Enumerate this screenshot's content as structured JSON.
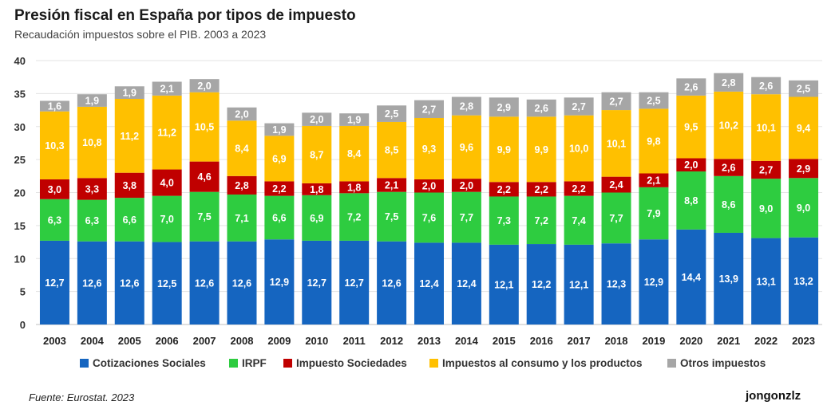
{
  "header": {
    "title": "Presión fiscal en España por tipos de impuesto",
    "subtitle": "Recaudación impuestos sobre el PIB. 2003 a 2023"
  },
  "footer": {
    "source": "Fuente: Eurostat. 2023",
    "author": "jongonzlz"
  },
  "chart_data": {
    "type": "bar",
    "stacked": true,
    "title": "Presión fiscal en España por tipos de impuesto",
    "subtitle": "Recaudación impuestos sobre el PIB. 2003 a 2023",
    "xlabel": "",
    "ylabel": "",
    "ylim": [
      0,
      40
    ],
    "yticks": [
      "0",
      "5",
      "10",
      "15",
      "20",
      "25",
      "30",
      "35",
      "40"
    ],
    "grid": true,
    "legend_position": "bottom",
    "categories": [
      "2003",
      "2004",
      "2005",
      "2006",
      "2007",
      "2008",
      "2009",
      "2010",
      "2011",
      "2012",
      "2013",
      "2014",
      "2015",
      "2016",
      "2017",
      "2018",
      "2019",
      "2020",
      "2021",
      "2022",
      "2023"
    ],
    "series": [
      {
        "name": "Cotizaciones Sociales",
        "color": "#1565c0",
        "values": [
          12.7,
          12.6,
          12.6,
          12.5,
          12.6,
          12.6,
          12.9,
          12.7,
          12.7,
          12.6,
          12.4,
          12.4,
          12.1,
          12.2,
          12.1,
          12.3,
          12.9,
          14.4,
          13.9,
          13.1,
          13.2
        ],
        "labels": [
          "12,7",
          "12,6",
          "12,6",
          "12,5",
          "12,6",
          "12,6",
          "12,9",
          "12,7",
          "12,7",
          "12,6",
          "12,4",
          "12,4",
          "12,1",
          "12,2",
          "12,1",
          "12,3",
          "12,9",
          "14,4",
          "13,9",
          "13,1",
          "13,2"
        ]
      },
      {
        "name": "IRPF",
        "color": "#2ecc40",
        "values": [
          6.3,
          6.3,
          6.6,
          7.0,
          7.5,
          7.1,
          6.6,
          6.9,
          7.2,
          7.5,
          7.6,
          7.7,
          7.3,
          7.2,
          7.4,
          7.7,
          7.9,
          8.8,
          8.6,
          9.0,
          9.0
        ],
        "labels": [
          "6,3",
          "6,3",
          "6,6",
          "7,0",
          "7,5",
          "7,1",
          "6,6",
          "6,9",
          "7,2",
          "7,5",
          "7,6",
          "7,7",
          "7,3",
          "7,2",
          "7,4",
          "7,7",
          "7,9",
          "8,8",
          "8,6",
          "9,0",
          "9,0"
        ]
      },
      {
        "name": "Impuesto Sociedades",
        "color": "#c00000",
        "values": [
          3.0,
          3.3,
          3.8,
          4.0,
          4.6,
          2.8,
          2.2,
          1.8,
          1.8,
          2.1,
          2.0,
          2.0,
          2.2,
          2.2,
          2.2,
          2.4,
          2.1,
          2.0,
          2.6,
          2.7,
          2.9
        ],
        "labels": [
          "3,0",
          "3,3",
          "3,8",
          "4,0",
          "4,6",
          "2,8",
          "2,2",
          "1,8",
          "1,8",
          "2,1",
          "2,0",
          "2,0",
          "2,2",
          "2,2",
          "2,2",
          "2,4",
          "2,1",
          "2,0",
          "2,6",
          "2,7",
          "2,9"
        ]
      },
      {
        "name": "Impuestos al consumo y los productos",
        "color": "#ffc000",
        "values": [
          10.3,
          10.8,
          11.2,
          11.2,
          10.5,
          8.4,
          6.9,
          8.7,
          8.4,
          8.5,
          9.3,
          9.6,
          9.9,
          9.9,
          10.0,
          10.1,
          9.8,
          9.5,
          10.2,
          10.1,
          9.4
        ],
        "labels": [
          "10,3",
          "10,8",
          "11,2",
          "11,2",
          "10,5",
          "8,4",
          "6,9",
          "8,7",
          "8,4",
          "8,5",
          "9,3",
          "9,6",
          "9,9",
          "9,9",
          "10,0",
          "10,1",
          "9,8",
          "9,5",
          "10,2",
          "10,1",
          "9,4"
        ]
      },
      {
        "name": "Otros impuestos",
        "color": "#a6a6a6",
        "values": [
          1.6,
          1.9,
          1.9,
          2.1,
          2.0,
          2.0,
          1.9,
          2.0,
          1.9,
          2.5,
          2.7,
          2.8,
          2.9,
          2.6,
          2.7,
          2.7,
          2.5,
          2.6,
          2.8,
          2.6,
          2.5
        ],
        "labels": [
          "1,6",
          "1,9",
          "1,9",
          "2,1",
          "2,0",
          "2,0",
          "1,9",
          "2,0",
          "1,9",
          "2,5",
          "2,7",
          "2,8",
          "2,9",
          "2,6",
          "2,7",
          "2,7",
          "2,5",
          "2,6",
          "2,8",
          "2,6",
          "2,5"
        ]
      }
    ]
  }
}
